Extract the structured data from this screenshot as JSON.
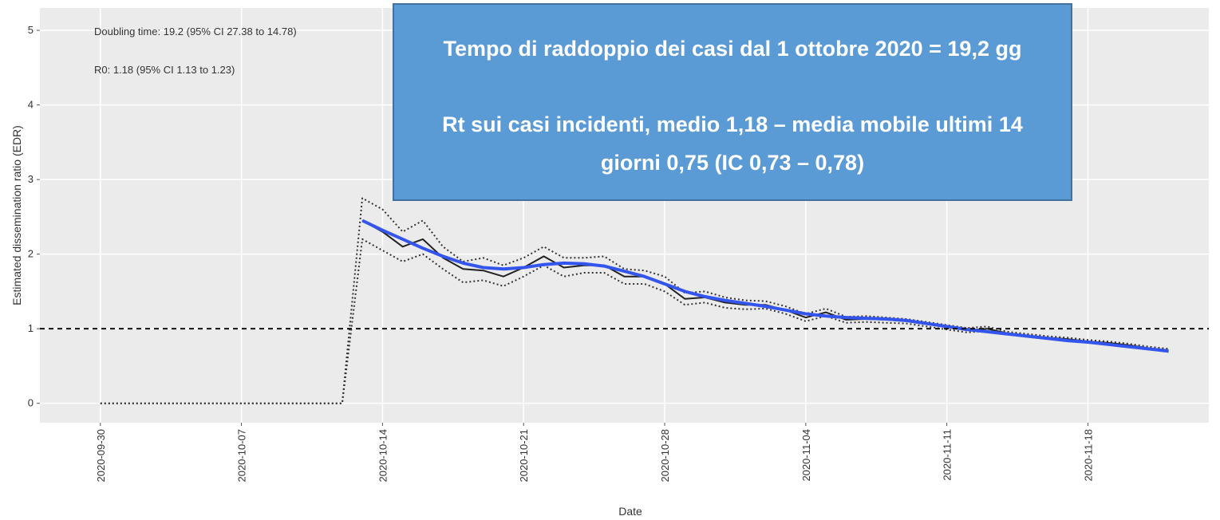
{
  "chart_data": {
    "type": "line",
    "xlabel": "Date",
    "ylabel": "Estimated dissemination ratio (EDR)",
    "annotations": [
      "Doubling time: 19.2 (95% CI 27.38 to 14.78)",
      "R0: 1.18 (95% CI 1.13 to 1.23)"
    ],
    "box": {
      "color": "#5b9bd5",
      "lines": [
        "Tempo di raddoppio dei casi dal 1 ottobre 2020 = 19,2 gg",
        "Rt sui casi incidenti, medio 1,18 – media mobile ultimi 14",
        "giorni 0,75 (IC 0,73 – 0,78)"
      ]
    },
    "x": [
      "2020-09-30",
      "2020-10-01",
      "2020-10-02",
      "2020-10-03",
      "2020-10-04",
      "2020-10-05",
      "2020-10-06",
      "2020-10-07",
      "2020-10-08",
      "2020-10-09",
      "2020-10-10",
      "2020-10-11",
      "2020-10-12",
      "2020-10-13",
      "2020-10-14",
      "2020-10-15",
      "2020-10-16",
      "2020-10-17",
      "2020-10-18",
      "2020-10-19",
      "2020-10-20",
      "2020-10-21",
      "2020-10-22",
      "2020-10-23",
      "2020-10-24",
      "2020-10-25",
      "2020-10-26",
      "2020-10-27",
      "2020-10-28",
      "2020-10-29",
      "2020-10-30",
      "2020-10-31",
      "2020-11-01",
      "2020-11-02",
      "2020-11-03",
      "2020-11-04",
      "2020-11-05",
      "2020-11-06",
      "2020-11-07",
      "2020-11-08",
      "2020-11-09",
      "2020-11-10",
      "2020-11-11",
      "2020-11-12",
      "2020-11-13",
      "2020-11-14",
      "2020-11-15",
      "2020-11-16",
      "2020-11-17",
      "2020-11-18",
      "2020-11-19",
      "2020-11-20",
      "2020-11-21",
      "2020-11-22"
    ],
    "series": [
      {
        "color": "#333333",
        "style": "dotted",
        "values": [
          0,
          0,
          0,
          0,
          0,
          0,
          0,
          0,
          0,
          0,
          0,
          0,
          0,
          2.75,
          2.6,
          2.3,
          2.45,
          2.1,
          1.9,
          1.95,
          1.85,
          1.95,
          2.1,
          1.95,
          1.95,
          1.97,
          1.8,
          1.78,
          1.7,
          1.48,
          1.5,
          1.42,
          1.38,
          1.37,
          1.3,
          1.2,
          1.27,
          1.16,
          1.17,
          1.15,
          1.13,
          1.09,
          1.05,
          1.01,
          1.03,
          0.96,
          0.93,
          0.9,
          0.88,
          0.85,
          0.83,
          0.8,
          0.76,
          0.73
        ]
      },
      {
        "color": "#333333",
        "style": "dotted",
        "values": [
          0,
          0,
          0,
          0,
          0,
          0,
          0,
          0,
          0,
          0,
          0,
          0,
          0,
          2.2,
          2.05,
          1.9,
          2.0,
          1.8,
          1.62,
          1.65,
          1.57,
          1.7,
          1.85,
          1.7,
          1.75,
          1.75,
          1.6,
          1.6,
          1.5,
          1.32,
          1.35,
          1.28,
          1.26,
          1.27,
          1.2,
          1.1,
          1.17,
          1.08,
          1.09,
          1.08,
          1.07,
          1.03,
          0.99,
          0.95,
          0.97,
          0.92,
          0.89,
          0.86,
          0.84,
          0.81,
          0.79,
          0.76,
          0.72,
          0.69
        ]
      },
      {
        "color": "#222222",
        "style": "solid",
        "values": [
          null,
          null,
          null,
          null,
          null,
          null,
          null,
          null,
          null,
          null,
          null,
          null,
          null,
          2.45,
          2.3,
          2.1,
          2.2,
          1.95,
          1.8,
          1.78,
          1.7,
          1.82,
          1.97,
          1.82,
          1.85,
          1.85,
          1.7,
          1.7,
          1.6,
          1.4,
          1.42,
          1.35,
          1.32,
          1.32,
          1.25,
          1.15,
          1.22,
          1.12,
          1.13,
          1.12,
          1.1,
          1.06,
          1.02,
          0.98,
          1.0,
          0.94,
          0.91,
          0.88,
          0.86,
          0.83,
          0.81,
          0.78,
          0.74,
          0.71
        ]
      },
      {
        "color": "#3355ee",
        "style": "thick",
        "values": [
          null,
          null,
          null,
          null,
          null,
          null,
          null,
          null,
          null,
          null,
          null,
          null,
          null,
          2.45,
          2.32,
          2.2,
          2.08,
          1.97,
          1.88,
          1.82,
          1.8,
          1.82,
          1.86,
          1.88,
          1.87,
          1.84,
          1.77,
          1.7,
          1.6,
          1.5,
          1.43,
          1.38,
          1.34,
          1.3,
          1.25,
          1.2,
          1.17,
          1.15,
          1.14,
          1.13,
          1.11,
          1.07,
          1.03,
          0.99,
          0.96,
          0.93,
          0.9,
          0.87,
          0.84,
          0.82,
          0.79,
          0.76,
          0.73,
          0.7
        ]
      }
    ],
    "hline": 1,
    "xlim": [
      "2020-09-27",
      "2020-11-24"
    ],
    "xticks": [
      "2020-09-30",
      "2020-10-07",
      "2020-10-14",
      "2020-10-21",
      "2020-10-28",
      "2020-11-04",
      "2020-11-11",
      "2020-11-18"
    ],
    "ylim": [
      -0.26,
      5.3
    ],
    "yticks": [
      0,
      1,
      2,
      3,
      4,
      5
    ],
    "grid": true
  }
}
